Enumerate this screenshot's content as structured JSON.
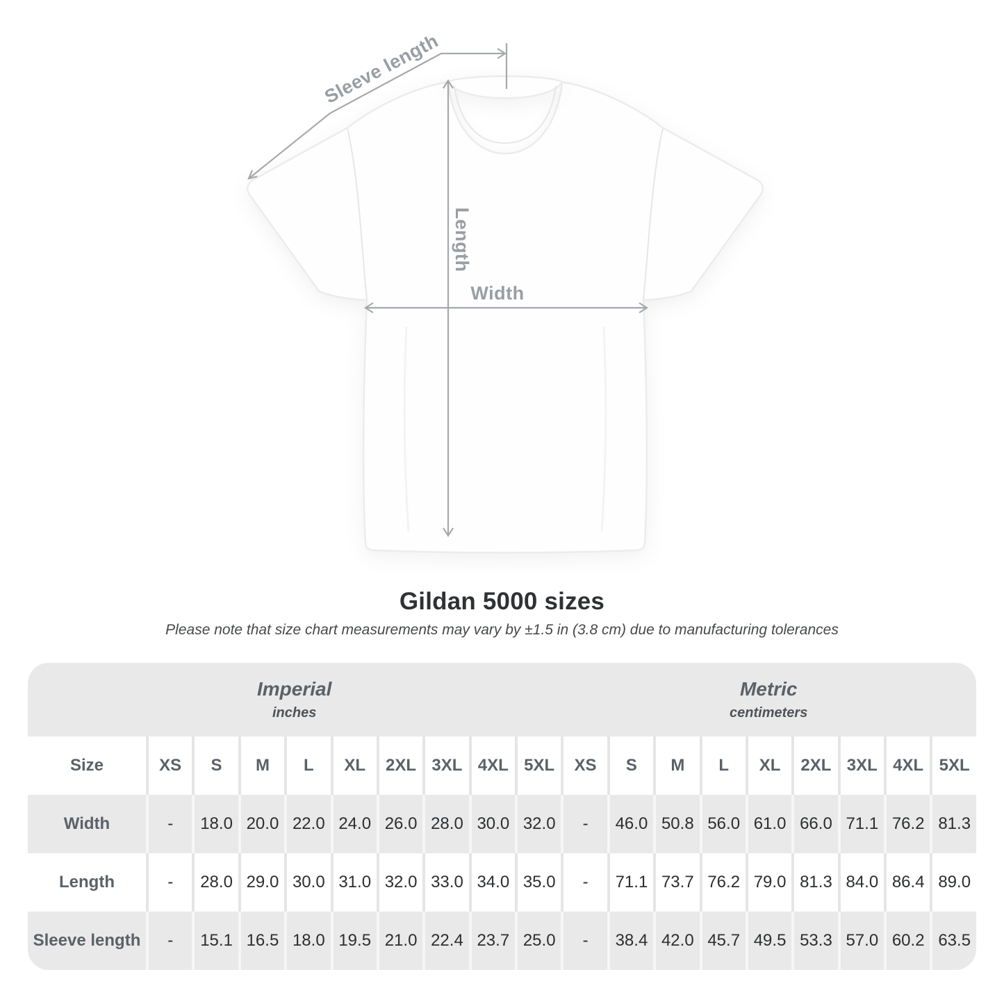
{
  "figure": {
    "sleeve_label": "Sleeve length",
    "length_label": "Length",
    "width_label": "Width"
  },
  "title": "Gildan 5000 sizes",
  "subtitle": "Please note that size chart measurements may vary by ±1.5 in (3.8 cm) due to manufacturing tolerances",
  "table": {
    "unit_groups": [
      {
        "label": "Imperial",
        "sublabel": "inches"
      },
      {
        "label": "Metric",
        "sublabel": "centimeters"
      }
    ],
    "size_header": "Size",
    "sizes": [
      "XS",
      "S",
      "M",
      "L",
      "XL",
      "2XL",
      "3XL",
      "4XL",
      "5XL"
    ],
    "rows": [
      {
        "label": "Width",
        "imperial": [
          "-",
          "18.0",
          "20.0",
          "22.0",
          "24.0",
          "26.0",
          "28.0",
          "30.0",
          "32.0"
        ],
        "metric": [
          "-",
          "46.0",
          "50.8",
          "56.0",
          "61.0",
          "66.0",
          "71.1",
          "76.2",
          "81.3"
        ]
      },
      {
        "label": "Length",
        "imperial": [
          "-",
          "28.0",
          "29.0",
          "30.0",
          "31.0",
          "32.0",
          "33.0",
          "34.0",
          "35.0"
        ],
        "metric": [
          "-",
          "71.1",
          "73.7",
          "76.2",
          "79.0",
          "81.3",
          "84.0",
          "86.4",
          "89.0"
        ]
      },
      {
        "label": "Sleeve length",
        "imperial": [
          "-",
          "15.1",
          "16.5",
          "18.0",
          "19.5",
          "21.0",
          "22.4",
          "23.7",
          "25.0"
        ],
        "metric": [
          "-",
          "38.4",
          "42.0",
          "45.7",
          "49.5",
          "53.3",
          "57.0",
          "60.2",
          "63.5"
        ]
      }
    ]
  },
  "colors": {
    "table_band_gray": "#e9e9e9",
    "separator_on_white": "#e5e5e5",
    "separator_on_gray": "#f6f6f6",
    "header_text_gray": "#5b6167",
    "value_text": "#2c2e30",
    "title_text": "#2f3234",
    "subtitle_text": "#46484a",
    "figure_line_gray": "#a5a9ac",
    "figure_label_gray": "#989ea4",
    "shirt_outline": "#ececec"
  }
}
